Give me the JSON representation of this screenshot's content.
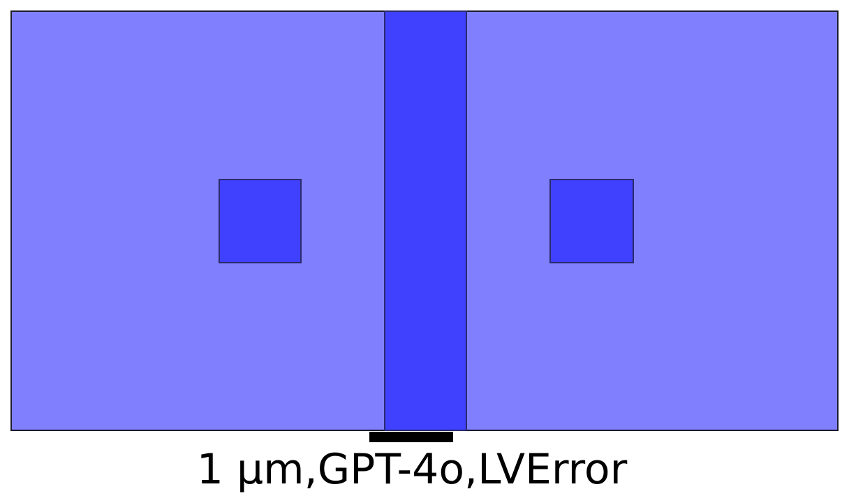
{
  "colors": {
    "background_region": "#8080ff",
    "feature_fill": "#4040ff",
    "outline": "#1b1b2e",
    "scale_bar": "#000000"
  },
  "caption": {
    "text": "1 µm,GPT-4o,LVError"
  },
  "scale_bar": {
    "length_label": "1 µm"
  }
}
